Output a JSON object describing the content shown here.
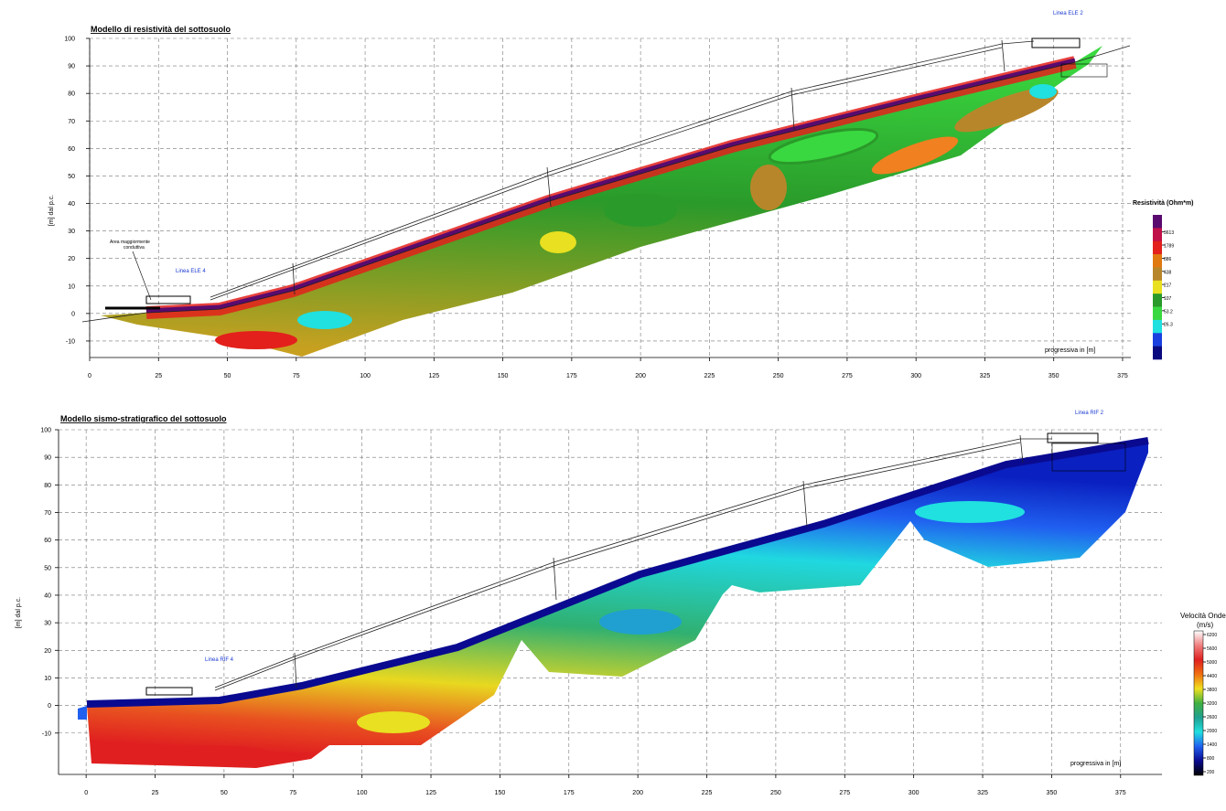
{
  "chart_data": [
    {
      "type": "contour",
      "title": "Modello di resistività del sottosuolo",
      "x_label": "progressiva in [m]",
      "y_label": "[m] dal p.c.",
      "xlim": [
        0,
        378
      ],
      "xticks": [
        0,
        25,
        50,
        75,
        100,
        125,
        150,
        175,
        200,
        225,
        250,
        275,
        300,
        325,
        350,
        375
      ],
      "ylim": [
        -16,
        100
      ],
      "yticks": [
        -10,
        0,
        10,
        20,
        30,
        40,
        50,
        60,
        70,
        80,
        90,
        100
      ],
      "grid": true,
      "colorbar": {
        "title": "Resistività (Ohm*m)",
        "ticks": [
          3613,
          1789,
          886,
          438,
          217,
          107,
          53.2,
          26.3
        ],
        "colors": [
          "#5a0a6e",
          "#c0104a",
          "#e3201b",
          "#e07a10",
          "#b8862a",
          "#e8e020",
          "#2a9a2a",
          "#3ad840",
          "#20e0e0",
          "#1a40e0",
          "#0a0a80"
        ]
      },
      "annotations": [
        "Linea ELE 2",
        "Area maggiormente",
        "conduttiva",
        "Linea ELE 4"
      ]
    },
    {
      "type": "contour",
      "title": "Modello sismo-stratigrafico del sottosuolo",
      "x_label": "progressiva in [m]",
      "y_label": "[m] dal p.c.",
      "xlim": [
        -10,
        390
      ],
      "xticks": [
        0,
        25,
        50,
        75,
        100,
        125,
        150,
        175,
        200,
        225,
        250,
        275,
        300,
        325,
        350,
        375
      ],
      "ylim": [
        -25,
        100
      ],
      "yticks": [
        -10,
        0,
        10,
        20,
        30,
        40,
        50,
        60,
        70,
        80,
        90,
        100
      ],
      "grid": true,
      "colorbar": {
        "title": "Velocità Onde",
        "unit": "(m/s)",
        "ticks": [
          6200,
          5600,
          5000,
          4400,
          3800,
          3200,
          2600,
          2000,
          1400,
          800,
          200
        ],
        "colors": [
          "#ffffff",
          "#f08080",
          "#e02020",
          "#f07010",
          "#f0e020",
          "#40b040",
          "#20a090",
          "#20e0e0",
          "#2060f0",
          "#0a0a90",
          "#000000"
        ]
      },
      "annotations": [
        "Linea RIF 2",
        "Linea RIF 4"
      ]
    }
  ]
}
